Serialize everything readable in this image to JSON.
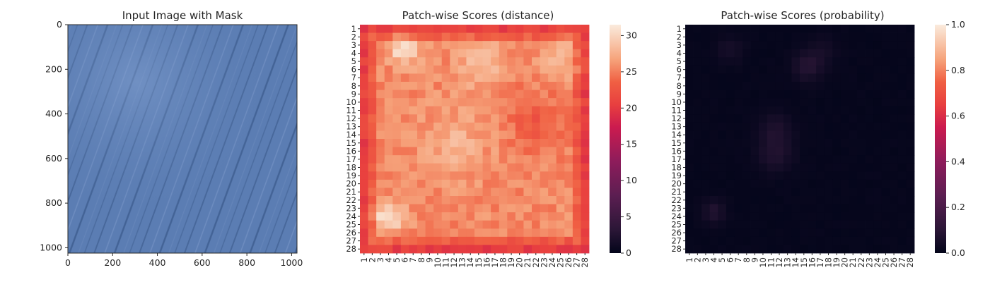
{
  "figure": {
    "panels": [
      {
        "title": "Input Image with Mask"
      },
      {
        "title": "Patch-wise Scores (distance)"
      },
      {
        "title": "Patch-wise Scores (probability)"
      }
    ]
  },
  "chart_data": [
    {
      "type": "image",
      "title": "Input Image with Mask",
      "xlim": [
        0,
        1024
      ],
      "ylim": [
        1024,
        0
      ],
      "x_ticks": [
        0,
        200,
        400,
        600,
        800,
        1000
      ],
      "y_ticks": [
        0,
        200,
        400,
        600,
        800,
        1000
      ],
      "image": {
        "description": "blue textured fabric surface with diagonal streaks",
        "base_color": "#5b7db3"
      }
    },
    {
      "type": "heatmap",
      "title": "Patch-wise Scores (distance)",
      "rows": 28,
      "cols": 28,
      "x_tick_labels": [
        "1",
        "2",
        "3",
        "4",
        "5",
        "6",
        "7",
        "8",
        "9",
        "10",
        "11",
        "12",
        "13",
        "14",
        "15",
        "16",
        "17",
        "18",
        "19",
        "20",
        "21",
        "22",
        "23",
        "24",
        "25",
        "26",
        "27",
        "28"
      ],
      "y_tick_labels": [
        "1",
        "2",
        "3",
        "4",
        "5",
        "6",
        "7",
        "8",
        "9",
        "10",
        "11",
        "12",
        "13",
        "14",
        "15",
        "16",
        "17",
        "18",
        "19",
        "20",
        "21",
        "22",
        "23",
        "24",
        "25",
        "26",
        "27",
        "28"
      ],
      "colormap": "rocket",
      "colorbar": {
        "min": 0,
        "max": 31.5,
        "ticks": [
          0,
          5,
          10,
          15,
          20,
          25,
          30
        ]
      },
      "value_range": [
        19,
        31.5
      ],
      "summary": "edges ~20-22, interior ~24-28, peaks ~31 near rows 3-4 cols 5-6 and rows 23-24 cols 3-4"
    },
    {
      "type": "heatmap",
      "title": "Patch-wise Scores (probability)",
      "rows": 28,
      "cols": 28,
      "x_tick_labels": [
        "1",
        "2",
        "3",
        "4",
        "5",
        "6",
        "7",
        "8",
        "9",
        "10",
        "11",
        "12",
        "13",
        "14",
        "15",
        "16",
        "17",
        "18",
        "19",
        "20",
        "21",
        "22",
        "23",
        "24",
        "25",
        "26",
        "27",
        "28"
      ],
      "y_tick_labels": [
        "1",
        "2",
        "3",
        "4",
        "5",
        "6",
        "7",
        "8",
        "9",
        "10",
        "11",
        "12",
        "13",
        "14",
        "15",
        "16",
        "17",
        "18",
        "19",
        "20",
        "21",
        "22",
        "23",
        "24",
        "25",
        "26",
        "27",
        "28"
      ],
      "colormap": "rocket",
      "colorbar": {
        "min": 0.0,
        "max": 1.0,
        "ticks": [
          "0.0",
          "0.2",
          "0.4",
          "0.6",
          "0.8",
          "1.0"
        ]
      },
      "value_range": [
        0.0,
        0.12
      ],
      "summary": "near zero everywhere; faint highlights ~0.05-0.1 at rows 5-6 cols 14-16, rows 11-18 cols 9-12, rows 23-24 cols 3-4, rows 3-4 cols 5-6"
    }
  ]
}
